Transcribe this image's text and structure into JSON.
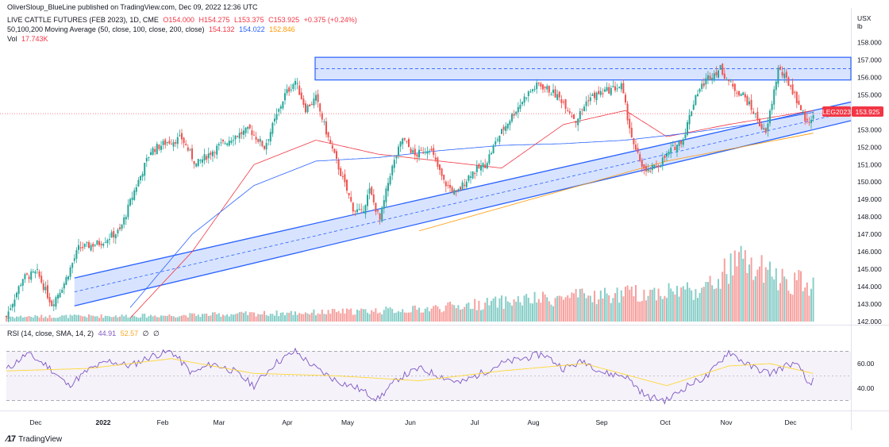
{
  "publisher": "OliverSloup_BlueLine published on TradingView.com, Dec 09, 2022 12:36 UTC",
  "legend": {
    "symbol": "LIVE CATTLE FUTURES (FEB 2023), 1D, CME",
    "open": "O154.000",
    "high": "H154.275",
    "low": "L153.375",
    "close": "C153.925",
    "change": "+0.375 (+0.24%)",
    "ma_label": "50,100,200 Moving Average (50, close, 100, close, 200, close)",
    "ma50": "154.132",
    "ma100": "154.022",
    "ma200": "152.846",
    "vol_label": "Vol",
    "vol_value": "17.743K",
    "rsi_label": "RSI (14, close, SMA, 14, 2)",
    "rsi_value": "44.91",
    "rsi_ma_value": "52.57",
    "rsi_extra1": "∅",
    "rsi_extra2": "∅"
  },
  "currency": "USX",
  "unit": "lb",
  "symbol_tag": "LEG2023",
  "last_price": "153.925",
  "brand": "TradingView",
  "colors": {
    "up": "#26a69a",
    "down": "#ef5350",
    "ma50": "#f23645",
    "ma100": "#2962ff",
    "ma200": "#ff9800",
    "channel": "#2962ff",
    "rsi": "#7e57c2",
    "rsi_ma": "#fdd835"
  },
  "chart_data": {
    "type": "candlestick",
    "y_ticks": [
      "158.000",
      "157.000",
      "156.000",
      "155.000",
      "154.000",
      "153.000",
      "152.000",
      "151.000",
      "150.000",
      "149.000",
      "148.000",
      "147.000",
      "146.000",
      "145.000",
      "144.000",
      "143.000",
      "142.000"
    ],
    "ylim": [
      142,
      158.5
    ],
    "time_ticks": [
      "Dec",
      "2022",
      "Feb",
      "Mar",
      "Apr",
      "May",
      "Jun",
      "Jul",
      "Aug",
      "Sep",
      "Oct",
      "Nov",
      "Dec"
    ],
    "rsi_ticks": [
      "60.00",
      "40.00"
    ],
    "rsi_bands": [
      70,
      30
    ],
    "close_anchors": [
      [
        0,
        142.3
      ],
      [
        8,
        144.5
      ],
      [
        15,
        144.8
      ],
      [
        22,
        143.0
      ],
      [
        28,
        144.2
      ],
      [
        35,
        146.2
      ],
      [
        45,
        146.5
      ],
      [
        55,
        147.2
      ],
      [
        62,
        149.5
      ],
      [
        70,
        151.8
      ],
      [
        78,
        152.3
      ],
      [
        85,
        152.5
      ],
      [
        92,
        151.0
      ],
      [
        100,
        151.8
      ],
      [
        110,
        152.6
      ],
      [
        118,
        153.0
      ],
      [
        125,
        152.0
      ],
      [
        130,
        153.5
      ],
      [
        135,
        155.0
      ],
      [
        140,
        155.8
      ],
      [
        145,
        154.2
      ],
      [
        150,
        154.8
      ],
      [
        156,
        152.5
      ],
      [
        162,
        150.5
      ],
      [
        168,
        148.5
      ],
      [
        172,
        148.2
      ],
      [
        176,
        149.5
      ],
      [
        181,
        147.8
      ],
      [
        186,
        150.5
      ],
      [
        192,
        152.5
      ],
      [
        198,
        151.5
      ],
      [
        205,
        152.0
      ],
      [
        212,
        150.0
      ],
      [
        218,
        149.3
      ],
      [
        225,
        150.5
      ],
      [
        232,
        151.0
      ],
      [
        238,
        152.5
      ],
      [
        245,
        153.8
      ],
      [
        252,
        155.0
      ],
      [
        258,
        155.6
      ],
      [
        264,
        155.2
      ],
      [
        270,
        154.6
      ],
      [
        276,
        153.5
      ],
      [
        282,
        154.8
      ],
      [
        290,
        155.2
      ],
      [
        298,
        155.5
      ],
      [
        304,
        152.0
      ],
      [
        310,
        150.5
      ],
      [
        316,
        151.0
      ],
      [
        322,
        151.8
      ],
      [
        328,
        152.5
      ],
      [
        334,
        155.0
      ],
      [
        340,
        156.0
      ],
      [
        346,
        156.5
      ],
      [
        352,
        155.4
      ],
      [
        357,
        155.0
      ],
      [
        363,
        153.8
      ],
      [
        368,
        152.7
      ],
      [
        374,
        156.5
      ],
      [
        380,
        155.5
      ],
      [
        385,
        154.2
      ],
      [
        388,
        153.4
      ],
      [
        391,
        153.9
      ]
    ],
    "ma50_anchors": [
      [
        60,
        142.2
      ],
      [
        90,
        146.0
      ],
      [
        120,
        151.0
      ],
      [
        150,
        152.4
      ],
      [
        180,
        151.6
      ],
      [
        210,
        151.2
      ],
      [
        240,
        150.8
      ],
      [
        270,
        153.3
      ],
      [
        300,
        154.1
      ],
      [
        320,
        152.6
      ],
      [
        350,
        153.3
      ],
      [
        391,
        154.1
      ]
    ],
    "ma100_anchors": [
      [
        60,
        142.8
      ],
      [
        90,
        147.0
      ],
      [
        120,
        149.8
      ],
      [
        150,
        151.2
      ],
      [
        180,
        151.4
      ],
      [
        210,
        151.8
      ],
      [
        240,
        152.1
      ],
      [
        270,
        152.2
      ],
      [
        300,
        152.4
      ],
      [
        330,
        152.8
      ],
      [
        360,
        153.3
      ],
      [
        391,
        154.0
      ]
    ],
    "ma200_anchors": [
      [
        200,
        147.2
      ],
      [
        260,
        149.2
      ],
      [
        320,
        151.2
      ],
      [
        391,
        152.8
      ]
    ],
    "channels": {
      "top_band": {
        "low": 155.85,
        "high": 157.15
      },
      "rising_upper": [
        [
          33,
          144.5
        ],
        [
          391,
          154.1
        ]
      ],
      "rising_lower": [
        [
          33,
          142.9
        ],
        [
          391,
          153.0
        ]
      ]
    },
    "volume_anchors": [
      [
        0,
        0.08
      ],
      [
        80,
        0.1
      ],
      [
        150,
        0.15
      ],
      [
        200,
        0.2
      ],
      [
        250,
        0.35
      ],
      [
        300,
        0.45
      ],
      [
        340,
        0.55
      ],
      [
        355,
        1.0
      ],
      [
        370,
        0.75
      ],
      [
        391,
        0.6
      ]
    ],
    "rsi_anchors": [
      [
        0,
        55
      ],
      [
        10,
        68
      ],
      [
        20,
        58
      ],
      [
        30,
        42
      ],
      [
        40,
        55
      ],
      [
        50,
        62
      ],
      [
        60,
        58
      ],
      [
        70,
        66
      ],
      [
        80,
        70
      ],
      [
        90,
        52
      ],
      [
        100,
        60
      ],
      [
        110,
        54
      ],
      [
        120,
        42
      ],
      [
        130,
        60
      ],
      [
        140,
        70
      ],
      [
        150,
        56
      ],
      [
        160,
        46
      ],
      [
        170,
        40
      ],
      [
        180,
        31
      ],
      [
        190,
        48
      ],
      [
        200,
        56
      ],
      [
        210,
        50
      ],
      [
        220,
        44
      ],
      [
        230,
        52
      ],
      [
        240,
        60
      ],
      [
        250,
        64
      ],
      [
        260,
        68
      ],
      [
        270,
        56
      ],
      [
        280,
        62
      ],
      [
        290,
        52
      ],
      [
        300,
        50
      ],
      [
        310,
        33
      ],
      [
        320,
        30
      ],
      [
        330,
        42
      ],
      [
        340,
        50
      ],
      [
        350,
        70
      ],
      [
        360,
        58
      ],
      [
        370,
        52
      ],
      [
        380,
        60
      ],
      [
        385,
        56
      ],
      [
        388,
        44
      ],
      [
        391,
        46
      ]
    ],
    "rsi_ma_anchors": [
      [
        0,
        54
      ],
      [
        40,
        56
      ],
      [
        80,
        64
      ],
      [
        120,
        52
      ],
      [
        160,
        50
      ],
      [
        200,
        46
      ],
      [
        240,
        54
      ],
      [
        280,
        60
      ],
      [
        320,
        42
      ],
      [
        350,
        58
      ],
      [
        370,
        60
      ],
      [
        391,
        52
      ]
    ]
  }
}
